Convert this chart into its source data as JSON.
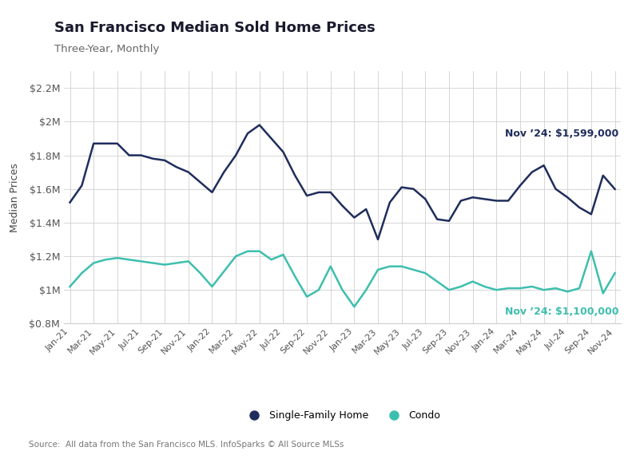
{
  "title": "San Francisco Median Sold Home Prices",
  "subtitle": "Three-Year, Monthly",
  "ylabel": "Median Prices",
  "source": "Source:  All data from the San Francisco MLS. InfoSparks © All Source MLSs",
  "sfh_label": "Nov ’24: $1,599,000",
  "condo_label": "Nov ’24: $1,100,000",
  "legend_sfh": "Single-Family Home",
  "legend_condo": "Condo",
  "sfh_color": "#1f2d5c",
  "condo_color": "#3dbfad",
  "background_color": "#ffffff",
  "grid_color": "#d0d0d0",
  "ylim": [
    800000,
    2300000
  ],
  "yticks": [
    800000,
    1000000,
    1200000,
    1400000,
    1600000,
    1800000,
    2000000,
    2200000
  ],
  "ytick_labels": [
    "$0.8M",
    "$1M",
    "$1.2M",
    "$1.4M",
    "$1.6M",
    "$1.8M",
    "$2M",
    "$2.2M"
  ],
  "x_labels": [
    "Jan-21",
    "Mar-21",
    "May-21",
    "Jul-21",
    "Sep-21",
    "Nov-21",
    "Jan-22",
    "Mar-22",
    "May-22",
    "Jul-22",
    "Sep-22",
    "Nov-22",
    "Jan-23",
    "Mar-23",
    "May-23",
    "Jul-23",
    "Sep-23",
    "Nov-23",
    "Jan-24",
    "Mar-24",
    "May-24",
    "Jul-24",
    "Sep-24",
    "Nov-24"
  ],
  "sfh_raw": [
    1520000,
    1620000,
    1870000,
    1870000,
    1870000,
    1800000,
    1800000,
    1780000,
    1770000,
    1730000,
    1700000,
    1640000,
    1580000,
    1700000,
    1800000,
    1930000,
    1980000,
    1900000,
    1820000,
    1680000,
    1560000,
    1580000,
    1580000,
    1500000,
    1430000,
    1480000,
    1300000,
    1520000,
    1610000,
    1600000,
    1540000,
    1420000,
    1410000,
    1530000,
    1550000,
    1540000,
    1530000,
    1530000,
    1620000,
    1700000,
    1740000,
    1600000,
    1550000,
    1490000,
    1450000,
    1680000,
    1599000
  ],
  "condo_raw": [
    1020000,
    1100000,
    1160000,
    1180000,
    1190000,
    1180000,
    1170000,
    1160000,
    1150000,
    1160000,
    1170000,
    1100000,
    1020000,
    1110000,
    1200000,
    1230000,
    1230000,
    1180000,
    1210000,
    1080000,
    960000,
    1000000,
    1140000,
    1000000,
    900000,
    1000000,
    1120000,
    1140000,
    1140000,
    1120000,
    1100000,
    1050000,
    1000000,
    1020000,
    1050000,
    1020000,
    1000000,
    1010000,
    1010000,
    1020000,
    1000000,
    1010000,
    990000,
    1010000,
    1230000,
    980000,
    1100000
  ]
}
